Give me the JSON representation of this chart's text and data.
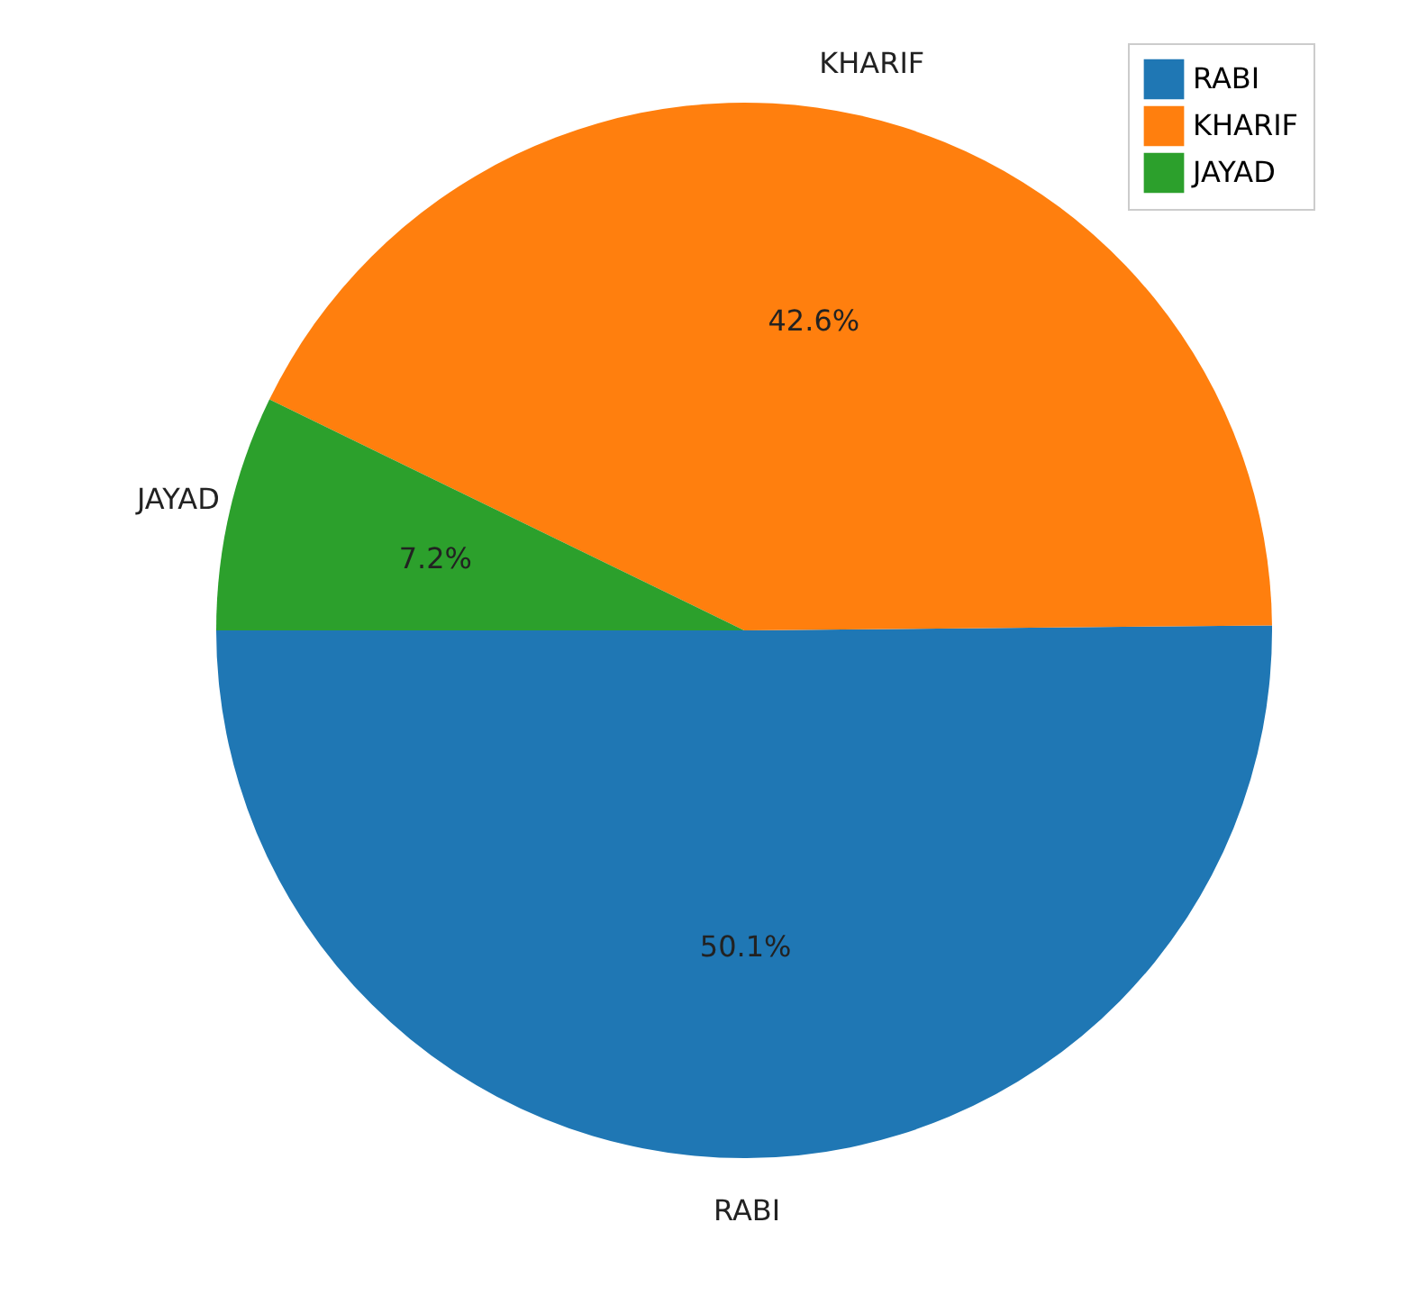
{
  "chart_data": {
    "type": "pie",
    "categories": [
      "RABI",
      "KHARIF",
      "JAYAD"
    ],
    "values": [
      50.1,
      42.6,
      7.2
    ],
    "colors": [
      "#1f77b4",
      "#ff7f0e",
      "#2ca02c"
    ],
    "value_labels": [
      "50.1%",
      "42.6%",
      "7.2%"
    ],
    "legend": "top right"
  }
}
